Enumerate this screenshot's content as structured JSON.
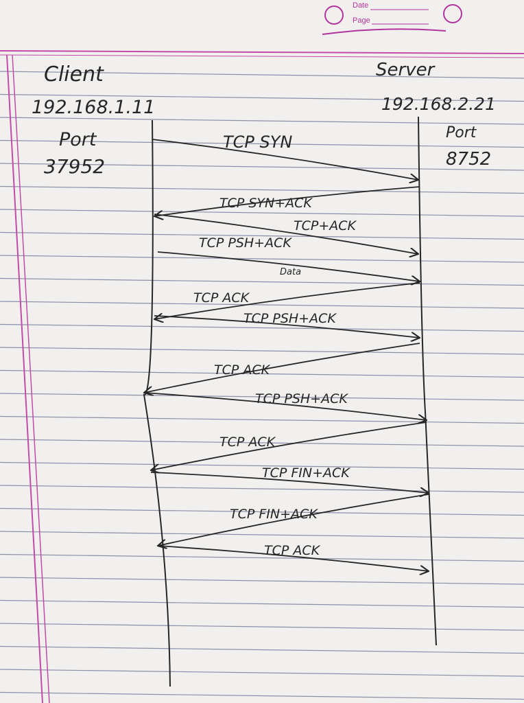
{
  "header": {
    "date_label": "Date",
    "page_label": "Page"
  },
  "colors": {
    "ink": "#262626",
    "margin": "#c24aa8",
    "rule": "#8a8fa8",
    "paper": "#f1f0ee"
  },
  "client": {
    "title": "Client",
    "ip": "192.168.1.11",
    "port_label": "Port",
    "port": "37952"
  },
  "server": {
    "title": "Server",
    "ip": "192.168.2.21",
    "port_label": "Port",
    "port": "8752"
  },
  "messages": [
    {
      "label": "TCP SYN",
      "from": "client",
      "to": "server"
    },
    {
      "label": "TCP SYN+ACK",
      "from": "server",
      "to": "client"
    },
    {
      "label": "TCP+ACK",
      "from": "client",
      "to": "server"
    },
    {
      "label": "TCP PSH+ACK",
      "note": "Data",
      "from": "client",
      "to": "server"
    },
    {
      "label": "TCP ACK",
      "from": "server",
      "to": "client"
    },
    {
      "label": "TCP PSH+ACK",
      "from": "client",
      "to": "server"
    },
    {
      "label": "TCP ACK",
      "from": "server",
      "to": "client"
    },
    {
      "label": "TCP PSH+ACK",
      "from": "client",
      "to": "server"
    },
    {
      "label": "TCP ACK",
      "from": "server",
      "to": "client"
    },
    {
      "label": "TCP FIN+ACK",
      "from": "client",
      "to": "server"
    },
    {
      "label": "TCP FIN+ACK",
      "from": "server",
      "to": "client"
    },
    {
      "label": "TCP ACK",
      "from": "client",
      "to": "server"
    }
  ]
}
